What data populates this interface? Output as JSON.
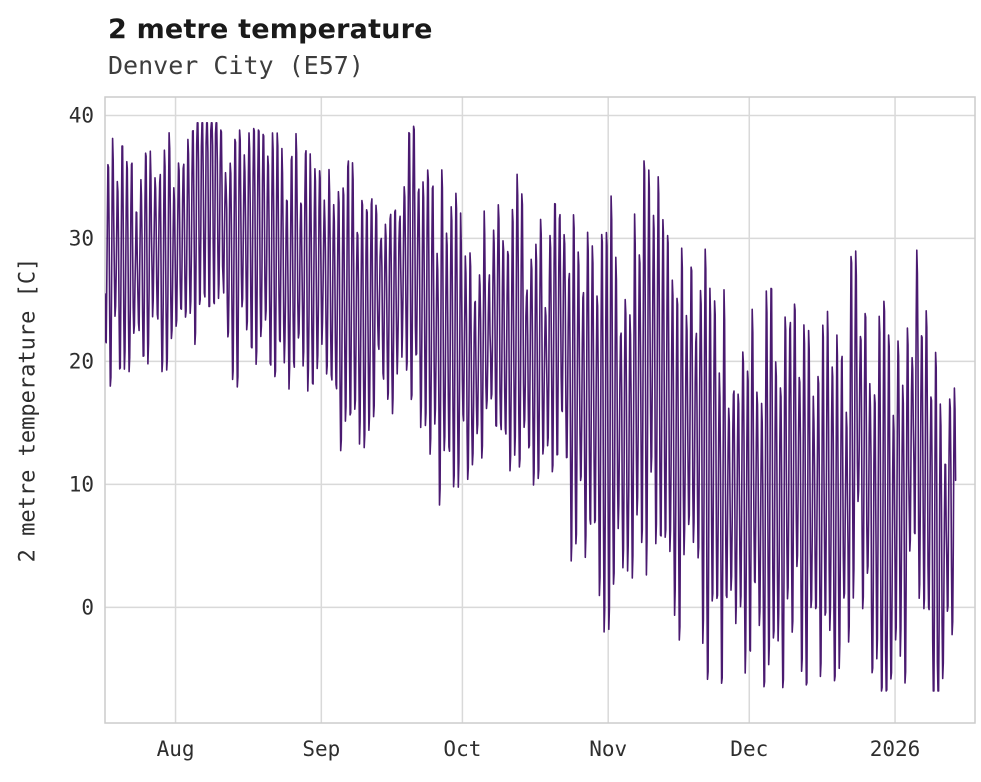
{
  "page": {
    "background": "#ffffff"
  },
  "chart_data": {
    "type": "line",
    "title": "2 metre temperature",
    "subtitle": "Denver City (E57)",
    "ylabel": "2 metre temperature [C]",
    "series_name": "2 metre temperature",
    "line_color": "#4a1a70",
    "grid_color": "#d9d9d9",
    "border_color": "#cccccc",
    "text_color": "#2e2e2e",
    "title_color": "#1a1a1a",
    "subtitle_color": "#3d3d3d",
    "grid": true,
    "legend": "none",
    "ylim": [
      -9.4,
      41.5
    ],
    "xlim_days": [
      0,
      185
    ],
    "yticks": [
      40,
      30,
      20,
      10,
      0
    ],
    "xticks": [
      {
        "label": "Aug",
        "day": 15
      },
      {
        "label": "Sep",
        "day": 46
      },
      {
        "label": "Oct",
        "day": 76
      },
      {
        "label": "Nov",
        "day": 107
      },
      {
        "label": "Dec",
        "day": 137
      },
      {
        "label": "2026",
        "day": 168
      }
    ],
    "envelope_anchors": [
      {
        "day": 0,
        "max": 36,
        "min": 20.5
      },
      {
        "day": 8,
        "max": 38,
        "min": 22
      },
      {
        "day": 15,
        "max": 38,
        "min": 21.5
      },
      {
        "day": 22,
        "max": 39,
        "min": 22
      },
      {
        "day": 30,
        "max": 36.5,
        "min": 20.5
      },
      {
        "day": 38,
        "max": 34.5,
        "min": 19
      },
      {
        "day": 46,
        "max": 35,
        "min": 17.5
      },
      {
        "day": 54,
        "max": 33,
        "min": 17
      },
      {
        "day": 62,
        "max": 31.5,
        "min": 15
      },
      {
        "day": 68,
        "max": 35,
        "min": 14
      },
      {
        "day": 76,
        "max": 33,
        "min": 12.5
      },
      {
        "day": 84,
        "max": 31,
        "min": 14
      },
      {
        "day": 92,
        "max": 30.5,
        "min": 12
      },
      {
        "day": 100,
        "max": 28.5,
        "min": 8
      },
      {
        "day": 107,
        "max": 29,
        "min": 3
      },
      {
        "day": 114,
        "max": 31,
        "min": 6
      },
      {
        "day": 121,
        "max": 27,
        "min": 2
      },
      {
        "day": 128,
        "max": 29,
        "min": 1
      },
      {
        "day": 134,
        "max": 21.5,
        "min": -1
      },
      {
        "day": 137,
        "max": 19,
        "min": -2
      },
      {
        "day": 140,
        "max": 21,
        "min": -6
      },
      {
        "day": 146,
        "max": 24,
        "min": 1
      },
      {
        "day": 153,
        "max": 26.5,
        "min": 3
      },
      {
        "day": 160,
        "max": 28,
        "min": 4
      },
      {
        "day": 166,
        "max": 22,
        "min": -6
      },
      {
        "day": 172,
        "max": 23.5,
        "min": 3
      },
      {
        "day": 177,
        "max": 21,
        "min": -5
      },
      {
        "day": 181,
        "max": 19,
        "min": 2
      }
    ],
    "value_extremes": {
      "observed_max": 39.3,
      "observed_min": -6.6
    },
    "samples_per_day": 8,
    "noise_seed": 42
  }
}
